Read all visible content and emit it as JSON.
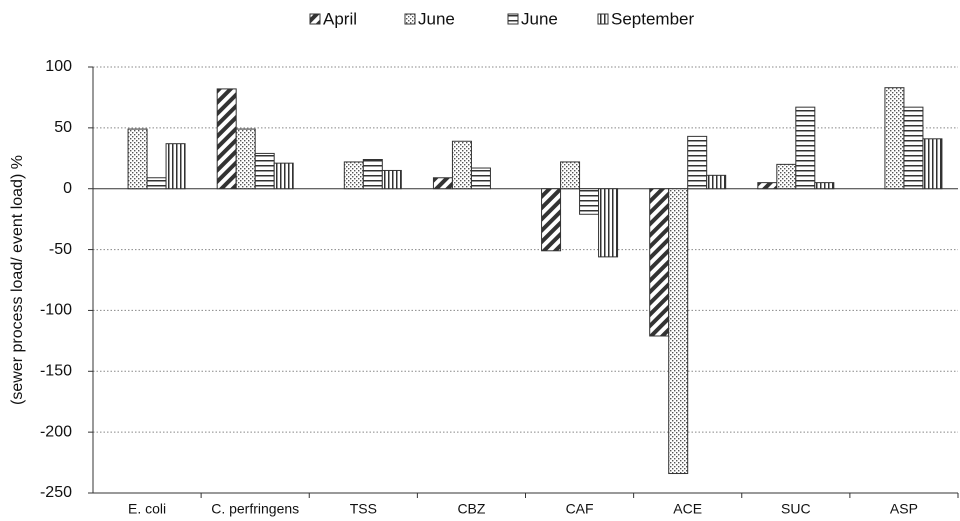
{
  "chart_data": {
    "type": "bar",
    "y_label": "(sewer process load/ event load) %",
    "categories": [
      "E. coli",
      "C. perfringens",
      "TSS",
      "CBZ",
      "CAF",
      "ACE",
      "SUC",
      "ASP"
    ],
    "series": [
      {
        "name": "April",
        "color": "#333333",
        "pattern": "diagonal",
        "values": [
          null,
          82,
          null,
          9,
          -51,
          -121,
          5,
          null
        ]
      },
      {
        "name": "June",
        "color": "#333333",
        "pattern": "dots",
        "values": [
          49,
          49,
          22,
          39,
          22,
          -234,
          20,
          83
        ]
      },
      {
        "name": "June",
        "color": "#333333",
        "pattern": "horizontal",
        "values": [
          9,
          29,
          24,
          17,
          -21,
          43,
          67,
          67
        ]
      },
      {
        "name": "September",
        "color": "#333333",
        "pattern": "vertical",
        "values": [
          37,
          21,
          15,
          null,
          -56,
          11,
          5,
          41
        ]
      }
    ],
    "ylim": [
      -250,
      100
    ],
    "yticks": [
      -250,
      -200,
      -150,
      -100,
      -50,
      0,
      50,
      100
    ],
    "grid": true,
    "legend": "top"
  }
}
